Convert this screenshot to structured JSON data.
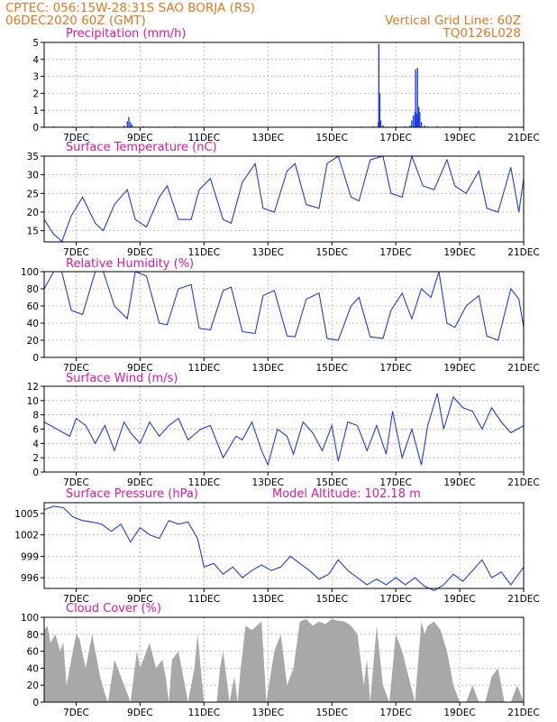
{
  "header": {
    "station": "CPTEC:   056:15W-28:31S  SAO BORJA (RS)",
    "run": "06DEC2020 60Z (GMT)",
    "grid_note": "Vertical Grid Line: 60Z",
    "code": "TQ0126L028"
  },
  "colors": {
    "header": "#e8761b",
    "panel_title": "#e0189a",
    "series": "#1f3ee8",
    "cloud": "#a8a8a8"
  },
  "chart_data": [
    {
      "type": "bar",
      "title": "Precipitation (mm/h)",
      "ylim": [
        0,
        5
      ],
      "yticks": [
        0,
        1,
        2,
        3,
        4,
        5
      ],
      "xlim": [
        6.0,
        21.0
      ],
      "xticks": [
        7,
        9,
        11,
        13,
        15,
        17,
        19,
        21
      ],
      "xtick_labels": [
        "7DEC",
        "9DEC",
        "11DEC",
        "13DEC",
        "15DEC",
        "17DEC",
        "19DEC",
        "21DEC"
      ],
      "grid": true,
      "x": [
        6.3,
        6.6,
        6.9,
        7.5,
        8.0,
        8.5,
        8.6,
        8.65,
        8.7,
        8.75,
        9.1,
        9.6,
        10.1,
        10.6,
        11.4,
        12.3,
        13.2,
        14.1,
        15.0,
        15.9,
        16.3,
        16.45,
        16.47,
        16.5,
        16.53,
        16.6,
        17.0,
        17.3,
        17.45,
        17.5,
        17.55,
        17.6,
        17.62,
        17.65,
        17.68,
        17.7,
        17.72,
        17.75,
        17.8,
        17.9,
        18.0,
        18.3,
        18.6,
        19.0,
        19.5,
        20.0,
        20.5
      ],
      "values": [
        0.05,
        0.03,
        0.04,
        0.05,
        0.04,
        0.1,
        0.35,
        0.6,
        0.3,
        0.15,
        0.05,
        0.04,
        0.05,
        0.03,
        0.02,
        0.03,
        0.02,
        0.03,
        0.03,
        0.04,
        0.05,
        0.3,
        4.9,
        2.0,
        0.4,
        0.1,
        0.05,
        0.05,
        0.1,
        0.4,
        0.7,
        0.9,
        3.4,
        0.8,
        3.5,
        0.5,
        1.2,
        0.9,
        0.3,
        0.1,
        0.05,
        0.05,
        0.04,
        0.05,
        0.05,
        0.03,
        0.04
      ]
    },
    {
      "type": "line",
      "title": "Surface Temperature (nC)",
      "ylim": [
        12,
        35
      ],
      "yticks": [
        15,
        20,
        25,
        30,
        35
      ],
      "xlim": [
        6.0,
        21.0
      ],
      "xticks": [
        7,
        9,
        11,
        13,
        15,
        17,
        19,
        21
      ],
      "xtick_labels": [
        "7DEC",
        "9DEC",
        "11DEC",
        "13DEC",
        "15DEC",
        "17DEC",
        "19DEC",
        "21DEC"
      ],
      "grid": true,
      "x": [
        6.0,
        6.3,
        6.45,
        6.55,
        6.85,
        7.2,
        7.6,
        7.85,
        8.2,
        8.6,
        8.85,
        9.2,
        9.6,
        9.85,
        10.2,
        10.6,
        10.85,
        11.2,
        11.6,
        11.85,
        12.2,
        12.6,
        12.85,
        13.2,
        13.6,
        13.85,
        14.2,
        14.6,
        14.85,
        15.2,
        15.6,
        15.85,
        16.2,
        16.6,
        16.85,
        17.2,
        17.5,
        17.85,
        18.2,
        18.6,
        18.85,
        19.2,
        19.6,
        19.85,
        20.2,
        20.6,
        20.85,
        21.0
      ],
      "values": [
        18,
        14,
        13,
        12,
        19,
        24,
        17,
        15,
        22,
        26,
        18,
        16,
        24,
        27,
        18,
        18,
        26,
        29,
        18,
        17,
        28,
        33,
        21,
        20,
        31,
        33,
        22,
        21,
        33,
        35,
        24,
        23,
        34,
        35,
        25,
        24,
        35,
        27,
        26,
        34,
        27,
        25,
        31,
        21,
        20,
        32,
        20,
        29
      ]
    },
    {
      "type": "line",
      "title": "Relative Humidity (%)",
      "ylim": [
        0,
        100
      ],
      "yticks": [
        0,
        20,
        40,
        60,
        80,
        100
      ],
      "xlim": [
        6.0,
        21.0
      ],
      "xticks": [
        7,
        9,
        11,
        13,
        15,
        17,
        19,
        21
      ],
      "xtick_labels": [
        "7DEC",
        "9DEC",
        "11DEC",
        "13DEC",
        "15DEC",
        "17DEC",
        "19DEC",
        "21DEC"
      ],
      "grid": true,
      "x": [
        6.0,
        6.3,
        6.55,
        6.85,
        7.2,
        7.6,
        7.85,
        8.2,
        8.6,
        8.85,
        9.2,
        9.6,
        9.85,
        10.2,
        10.6,
        10.85,
        11.2,
        11.6,
        11.85,
        12.2,
        12.6,
        12.85,
        13.2,
        13.6,
        13.85,
        14.2,
        14.6,
        14.85,
        15.2,
        15.6,
        15.85,
        16.2,
        16.6,
        16.85,
        17.2,
        17.5,
        17.8,
        18.1,
        18.35,
        18.6,
        18.85,
        19.2,
        19.6,
        19.85,
        20.2,
        20.6,
        20.85,
        21.0
      ],
      "values": [
        80,
        100,
        100,
        55,
        50,
        100,
        100,
        60,
        45,
        100,
        95,
        40,
        38,
        80,
        85,
        34,
        32,
        78,
        82,
        30,
        28,
        72,
        78,
        25,
        24,
        68,
        75,
        22,
        20,
        60,
        70,
        24,
        22,
        55,
        75,
        45,
        80,
        70,
        100,
        40,
        35,
        60,
        72,
        25,
        20,
        80,
        68,
        35
      ]
    },
    {
      "type": "line",
      "title": "Surface Wind (m/s)",
      "ylim": [
        0,
        12
      ],
      "yticks": [
        0,
        2,
        4,
        6,
        8,
        10,
        12
      ],
      "xlim": [
        6.0,
        21.0
      ],
      "xticks": [
        7,
        9,
        11,
        13,
        15,
        17,
        19,
        21
      ],
      "xtick_labels": [
        "7DEC",
        "9DEC",
        "11DEC",
        "13DEC",
        "15DEC",
        "17DEC",
        "19DEC",
        "21DEC"
      ],
      "grid": true,
      "x": [
        6.0,
        6.4,
        6.8,
        7.0,
        7.3,
        7.6,
        7.9,
        8.2,
        8.5,
        8.7,
        9.0,
        9.3,
        9.6,
        9.9,
        10.2,
        10.5,
        10.9,
        11.2,
        11.6,
        12.0,
        12.2,
        12.5,
        12.8,
        13.0,
        13.3,
        13.6,
        13.8,
        14.1,
        14.4,
        14.7,
        15.0,
        15.2,
        15.5,
        15.8,
        16.1,
        16.4,
        16.7,
        16.9,
        17.2,
        17.5,
        17.8,
        18.0,
        18.3,
        18.5,
        18.8,
        19.1,
        19.4,
        19.7,
        20.0,
        20.3,
        20.6,
        21.0
      ],
      "values": [
        7.0,
        6.0,
        5.0,
        7.5,
        6.5,
        4.0,
        6.5,
        3.0,
        7.0,
        5.5,
        4.0,
        7.0,
        5.0,
        6.5,
        7.5,
        4.5,
        6.0,
        6.5,
        2.0,
        5.0,
        4.5,
        7.0,
        3.0,
        1.0,
        6.0,
        5.0,
        2.5,
        7.0,
        5.5,
        3.0,
        6.5,
        1.5,
        7.0,
        6.5,
        3.0,
        6.5,
        2.5,
        8.5,
        2.0,
        6.0,
        1.0,
        6.5,
        11.0,
        6.0,
        10.5,
        9.0,
        8.5,
        6.0,
        9.0,
        7.0,
        5.5,
        6.5
      ]
    },
    {
      "type": "line",
      "title": "Surface Pressure (hPa)",
      "annotation": "Model Altitude: 102.18 m",
      "ylim": [
        994.5,
        1006.5
      ],
      "yticks": [
        996,
        999,
        1002,
        1005
      ],
      "xlim": [
        6.0,
        21.0
      ],
      "xticks": [
        7,
        9,
        11,
        13,
        15,
        17,
        19,
        21
      ],
      "xtick_labels": [
        "7DEC",
        "9DEC",
        "11DEC",
        "13DEC",
        "15DEC",
        "17DEC",
        "19DEC",
        "21DEC"
      ],
      "grid": true,
      "x": [
        6.0,
        6.3,
        6.6,
        6.9,
        7.2,
        7.5,
        7.8,
        8.1,
        8.4,
        8.7,
        9.0,
        9.3,
        9.6,
        9.9,
        10.2,
        10.5,
        10.8,
        11.0,
        11.3,
        11.6,
        11.9,
        12.2,
        12.5,
        12.8,
        13.1,
        13.4,
        13.7,
        14.0,
        14.3,
        14.6,
        14.9,
        15.2,
        15.5,
        15.8,
        16.1,
        16.4,
        16.7,
        17.0,
        17.3,
        17.6,
        17.9,
        18.2,
        18.5,
        18.8,
        19.1,
        19.4,
        19.7,
        20.0,
        20.3,
        20.6,
        21.0
      ],
      "values": [
        1005.5,
        1006.0,
        1005.8,
        1004.5,
        1004.0,
        1003.8,
        1003.5,
        1002.5,
        1003.5,
        1001.0,
        1003.0,
        1002.0,
        1001.5,
        1004.0,
        1003.5,
        1003.8,
        1001.5,
        997.5,
        998.0,
        996.5,
        997.5,
        996.0,
        997.0,
        997.8,
        997.0,
        997.5,
        999.0,
        998.0,
        997.0,
        995.8,
        996.5,
        998.5,
        997.0,
        996.0,
        995.0,
        995.8,
        995.0,
        996.0,
        995.0,
        996.0,
        994.8,
        994.2,
        995.0,
        996.5,
        995.5,
        997.0,
        998.5,
        996.0,
        996.8,
        995.0,
        997.5
      ]
    },
    {
      "type": "area",
      "title": "Cloud Cover (%)",
      "ylim": [
        0,
        100
      ],
      "yticks": [
        0,
        20,
        40,
        60,
        80,
        100
      ],
      "xlim": [
        6.0,
        21.0
      ],
      "xticks": [
        7,
        9,
        11,
        13,
        15,
        17,
        19,
        21
      ],
      "xtick_labels": [
        "7DEC",
        "9DEC",
        "11DEC",
        "13DEC",
        "15DEC",
        "17DEC",
        "19DEC",
        "21DEC"
      ],
      "grid": true,
      "x": [
        6.0,
        6.1,
        6.2,
        6.35,
        6.5,
        6.6,
        6.7,
        6.85,
        7.0,
        7.1,
        7.3,
        7.5,
        7.6,
        7.75,
        7.9,
        8.0,
        8.2,
        8.3,
        8.5,
        8.7,
        8.9,
        9.0,
        9.3,
        9.5,
        9.7,
        9.8,
        9.9,
        10.0,
        10.2,
        10.5,
        10.7,
        10.8,
        11.0,
        11.4,
        11.5,
        11.6,
        11.8,
        11.95,
        12.05,
        12.15,
        12.3,
        12.5,
        12.8,
        12.95,
        13.2,
        13.4,
        13.6,
        13.8,
        14.0,
        14.2,
        14.4,
        14.6,
        14.8,
        15.0,
        15.2,
        15.4,
        15.6,
        15.8,
        16.0,
        16.1,
        16.2,
        16.4,
        16.6,
        16.8,
        17.0,
        17.2,
        17.4,
        17.6,
        17.8,
        17.9,
        18.0,
        18.2,
        18.4,
        18.6,
        18.8,
        19.0,
        19.2,
        19.4,
        19.6,
        19.8,
        20.0,
        20.2,
        20.4,
        20.6,
        20.8,
        21.0
      ],
      "values": [
        85,
        90,
        70,
        80,
        60,
        70,
        20,
        50,
        80,
        75,
        40,
        80,
        60,
        30,
        10,
        0,
        50,
        40,
        20,
        0,
        60,
        40,
        70,
        40,
        50,
        30,
        0,
        50,
        60,
        0,
        40,
        80,
        0,
        0,
        40,
        60,
        0,
        30,
        0,
        40,
        90,
        85,
        95,
        0,
        60,
        80,
        20,
        40,
        95,
        98,
        90,
        95,
        92,
        98,
        96,
        95,
        90,
        80,
        20,
        50,
        0,
        90,
        20,
        0,
        80,
        60,
        30,
        0,
        95,
        80,
        90,
        95,
        85,
        60,
        20,
        0,
        0,
        20,
        0,
        0,
        30,
        40,
        0,
        0,
        20,
        0
      ]
    }
  ]
}
